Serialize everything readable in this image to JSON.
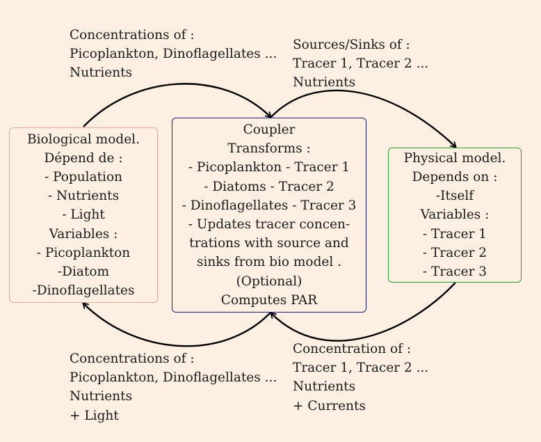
{
  "biological_model": {
    "lines": [
      "Biological model.",
      "Dépend de :",
      "- Population",
      "- Nutrients",
      "- Light",
      "Variables :",
      "- Picoplankton",
      "-Diatom",
      "-Dinoflagellates"
    ]
  },
  "coupler": {
    "lines": [
      "Coupler",
      "Transforms :",
      "- Picoplankton - Tracer 1",
      "- Diatoms - Tracer 2",
      "- Dinoflagellates - Tracer 3",
      "- Updates tracer concen-",
      "trations with source and",
      "sinks from bio model .",
      "(Optional)",
      "Computes PAR"
    ]
  },
  "physical_model": {
    "lines": [
      "Physical model.",
      "Depends on :",
      "-Itself",
      "Variables :",
      "- Tracer 1",
      "- Tracer 2",
      "- Tracer 3"
    ]
  },
  "labels": {
    "top_left": [
      "Concentrations of :",
      "Picoplankton, Dinoflagellates ...",
      "Nutrients"
    ],
    "top_right": [
      "Sources/Sinks of :",
      "Tracer 1, Tracer 2 ...",
      "Nutrients"
    ],
    "bottom_left": [
      "Concentrations of :",
      "Picoplankton, Dinoflagellates ...",
      "Nutrients",
      "+ Light"
    ],
    "bottom_right": [
      "Concentration of :",
      "Tracer 1, Tracer 2 ...",
      "Nutrients",
      "+ Currents"
    ]
  },
  "colors": {
    "background": "#fdefe1",
    "biological_border": "#e0a89a",
    "coupler_border": "#1a1a80",
    "physical_border": "#2ca02c",
    "arrow": "#000000"
  }
}
